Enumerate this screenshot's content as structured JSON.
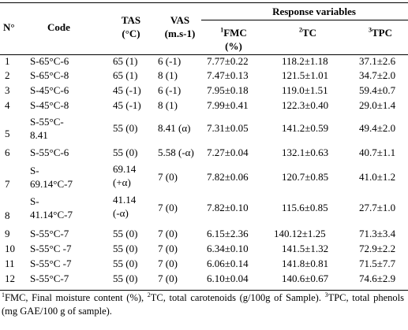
{
  "header": {
    "no": "N°",
    "code": "Code",
    "tas_line1": "TAS",
    "tas_line2": "(°C)",
    "vas_line1": "VAS",
    "vas_line2": "(m.s-1)",
    "response": "Response variables",
    "fmc_sup": "1",
    "fmc_line1": "FMC",
    "fmc_line2": "(%)",
    "tc_sup": "2",
    "tc": "TC",
    "tpc_sup": "3",
    "tpc": "TPC"
  },
  "rows": [
    {
      "n": "1",
      "code1": "S-65°C-6",
      "code2": "",
      "tas1": "65 (1)",
      "tas2": "",
      "vas": "6 (-1)",
      "fmc": "7.77±0.22",
      "tc": "118.2±1.18",
      "tpc": "37.1±2.6"
    },
    {
      "n": "2",
      "code1": "S-65°C-8",
      "code2": "",
      "tas1": "65 (1)",
      "tas2": "",
      "vas": "8 (1)",
      "fmc": "7.47±0.13",
      "tc": "121.5±1.01",
      "tpc": "34.7±2.0"
    },
    {
      "n": "3",
      "code1": "S-45°C-6",
      "code2": "",
      "tas1": "45 (-1)",
      "tas2": "",
      "vas": "6 (-1)",
      "fmc": "7.95±0.18",
      "tc": "119.0±1.51",
      "tpc": "59.4±0.7"
    },
    {
      "n": "4",
      "code1": "S-45°C-8",
      "code2": "",
      "tas1": "45 (-1)",
      "tas2": "",
      "vas": "8 (1)",
      "fmc": "7.99±0.41",
      "tc": "122.3±0.40",
      "tpc": "29.0±1.4"
    },
    {
      "n": "5",
      "code1": "S-55°C-",
      "code2": "8.41",
      "tas1": "55 (0)",
      "tas2": "",
      "vas": "8.41 (α)",
      "fmc": "7.31±0.05",
      "tc": "141.2±0.59",
      "tpc": "49.4±2.0"
    },
    {
      "n": "6",
      "code1": "S-55°C-6",
      "code2": "",
      "tas1": "55 (0)",
      "tas2": "",
      "vas": "5.58 (-α)",
      "fmc": "7.27±0.04",
      "tc": "132.1±0.63",
      "tpc": "40.7±1.1"
    },
    {
      "n": "7",
      "code1": "S-",
      "code2": "69.14°C-7",
      "tas1": "69.14",
      "tas2": "(+α)",
      "vas": "7 (0)",
      "fmc": "7.82±0.06",
      "tc": "120.7±0.85",
      "tpc": "41.0±1.2"
    },
    {
      "n": "8",
      "code1": "S-",
      "code2": "41.14°C-7",
      "tas1": "41.14",
      "tas2": "(-α)",
      "vas": "7 (0)",
      "fmc": "7.82±0.10",
      "tc": "115.6±0.85",
      "tpc": "27.7±1.0"
    },
    {
      "n": "9",
      "code1": "S-55°C-7",
      "code2": "",
      "tas1": "55 (0)",
      "tas2": "",
      "vas": "7 (0)",
      "fmc": "6.15±2.36",
      "tc": "140.12±1.25",
      "tpc": "71.3±3.4"
    },
    {
      "n": "10",
      "code1": "S-55°C -7",
      "code2": "",
      "tas1": "55 (0)",
      "tas2": "",
      "vas": "7 (0)",
      "fmc": "6.34±0.10",
      "tc": "141.5±1.32",
      "tpc": "72.9±2.2"
    },
    {
      "n": "11",
      "code1": "S-55°C -7",
      "code2": "",
      "tas1": "55 (0)",
      "tas2": "",
      "vas": "7 (0)",
      "fmc": "6.06±0.14",
      "tc": "141.8±0.81",
      "tpc": "71.5±7.7"
    },
    {
      "n": "12",
      "code1": "S-55°C-7",
      "code2": "",
      "tas1": "55 (0)",
      "tas2": "",
      "vas": "7 (0)",
      "fmc": "6.10±0.04",
      "tc": "140.6±0.67",
      "tpc": "74.6±2.9"
    }
  ],
  "footnote": {
    "s1": "1",
    "t1": "FMC, Final moisture content (%), ",
    "s2": "2",
    "t2": "TC, total carotenoids (g/100g of Sample). ",
    "s3": "3",
    "t3": "TPC, total phenols (mg GAE/100 g of sample)."
  }
}
